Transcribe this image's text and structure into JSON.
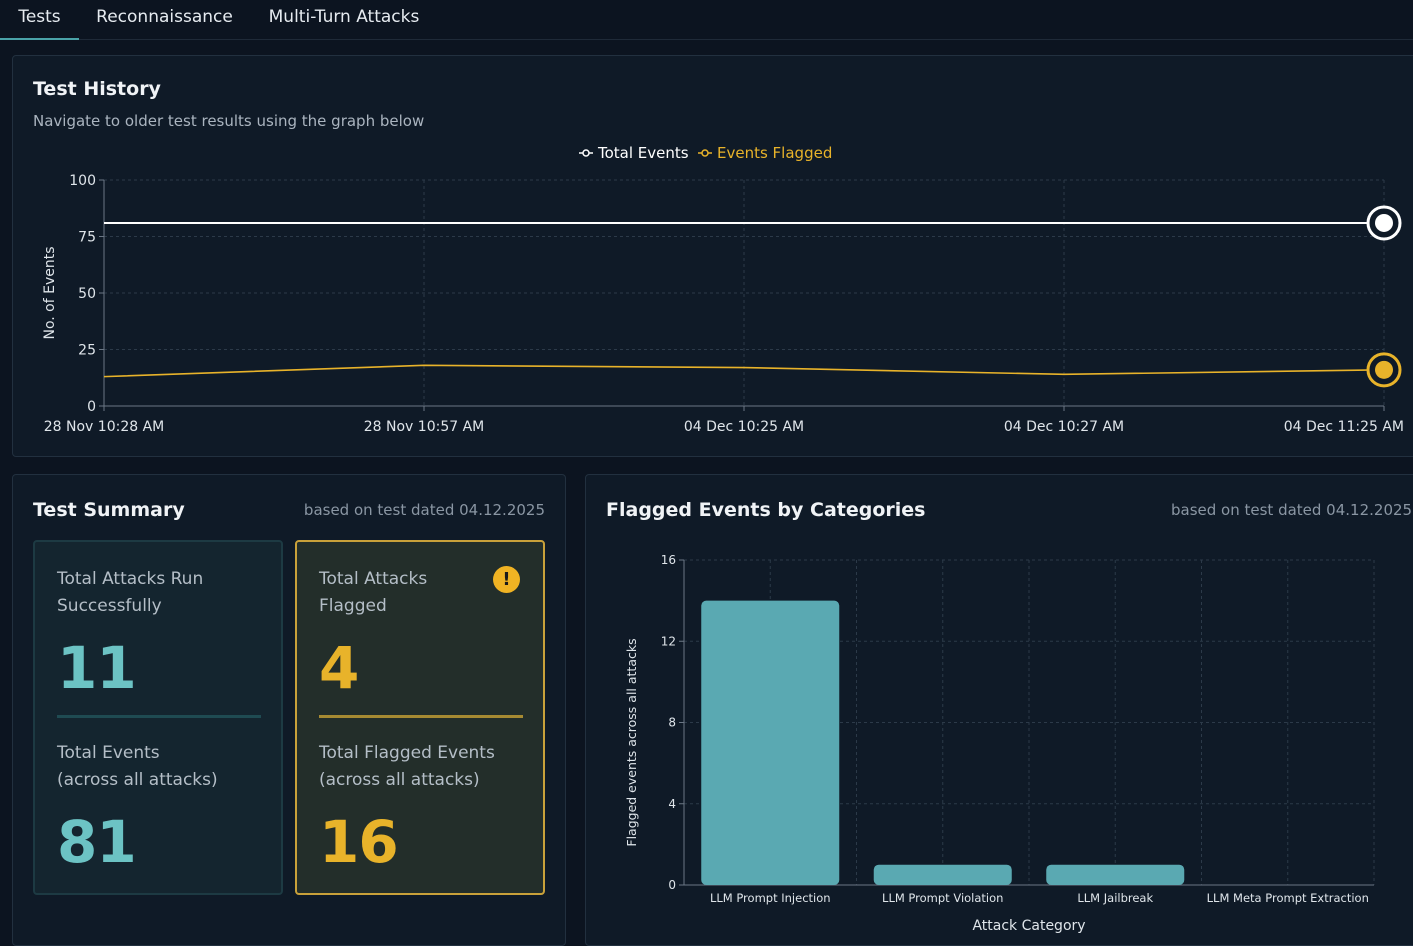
{
  "tabs": [
    {
      "label": "Tests",
      "active": true
    },
    {
      "label": "Reconnaissance",
      "active": false
    },
    {
      "label": "Multi-Turn Attacks",
      "active": false
    }
  ],
  "history": {
    "title": "Test History",
    "subtitle": "Navigate to older test results using the graph below",
    "chart_data": {
      "type": "line",
      "x": [
        "28 Nov 10:28 AM",
        "28 Nov 10:57 AM",
        "04 Dec 10:25 AM",
        "04 Dec 10:27 AM",
        "04 Dec 11:25 AM"
      ],
      "series": [
        {
          "name": "Total Events",
          "color": "#ffffff",
          "values": [
            81,
            81,
            81,
            81,
            81
          ]
        },
        {
          "name": "Events Flagged",
          "color": "#e8b32a",
          "values": [
            13,
            18,
            17,
            14,
            16
          ]
        }
      ],
      "ylabel": "No. of Events",
      "yticks": [
        0,
        25,
        50,
        75,
        100
      ],
      "ylim": [
        0,
        100
      ]
    }
  },
  "summary": {
    "title": "Test Summary",
    "meta": "based on test dated 04.12.2025",
    "attacks_run_label": "Total Attacks Run\nSuccessfully",
    "attacks_run_value": "11",
    "total_events_label": "Total Events\n(across all attacks)",
    "total_events_value": "81",
    "attacks_flagged_label": "Total Attacks\nFlagged",
    "attacks_flagged_value": "4",
    "flagged_events_label": "Total Flagged Events\n(across all attacks)",
    "flagged_events_value": "16",
    "alert_icon": "!"
  },
  "categories": {
    "title": "Flagged Events by Categories",
    "meta": "based on test dated 04.12.2025",
    "chart_data": {
      "type": "bar",
      "categories": [
        "LLM Prompt Injection",
        "LLM Prompt Violation",
        "LLM Jailbreak",
        "LLM Meta Prompt Extraction"
      ],
      "values": [
        14,
        1,
        1,
        0
      ],
      "xlabel": "Attack Category",
      "ylabel": "Flagged events across all attacks",
      "yticks": [
        0,
        4,
        8,
        12,
        16
      ],
      "ylim": [
        0,
        16
      ],
      "color": "#5aa9b2"
    }
  }
}
